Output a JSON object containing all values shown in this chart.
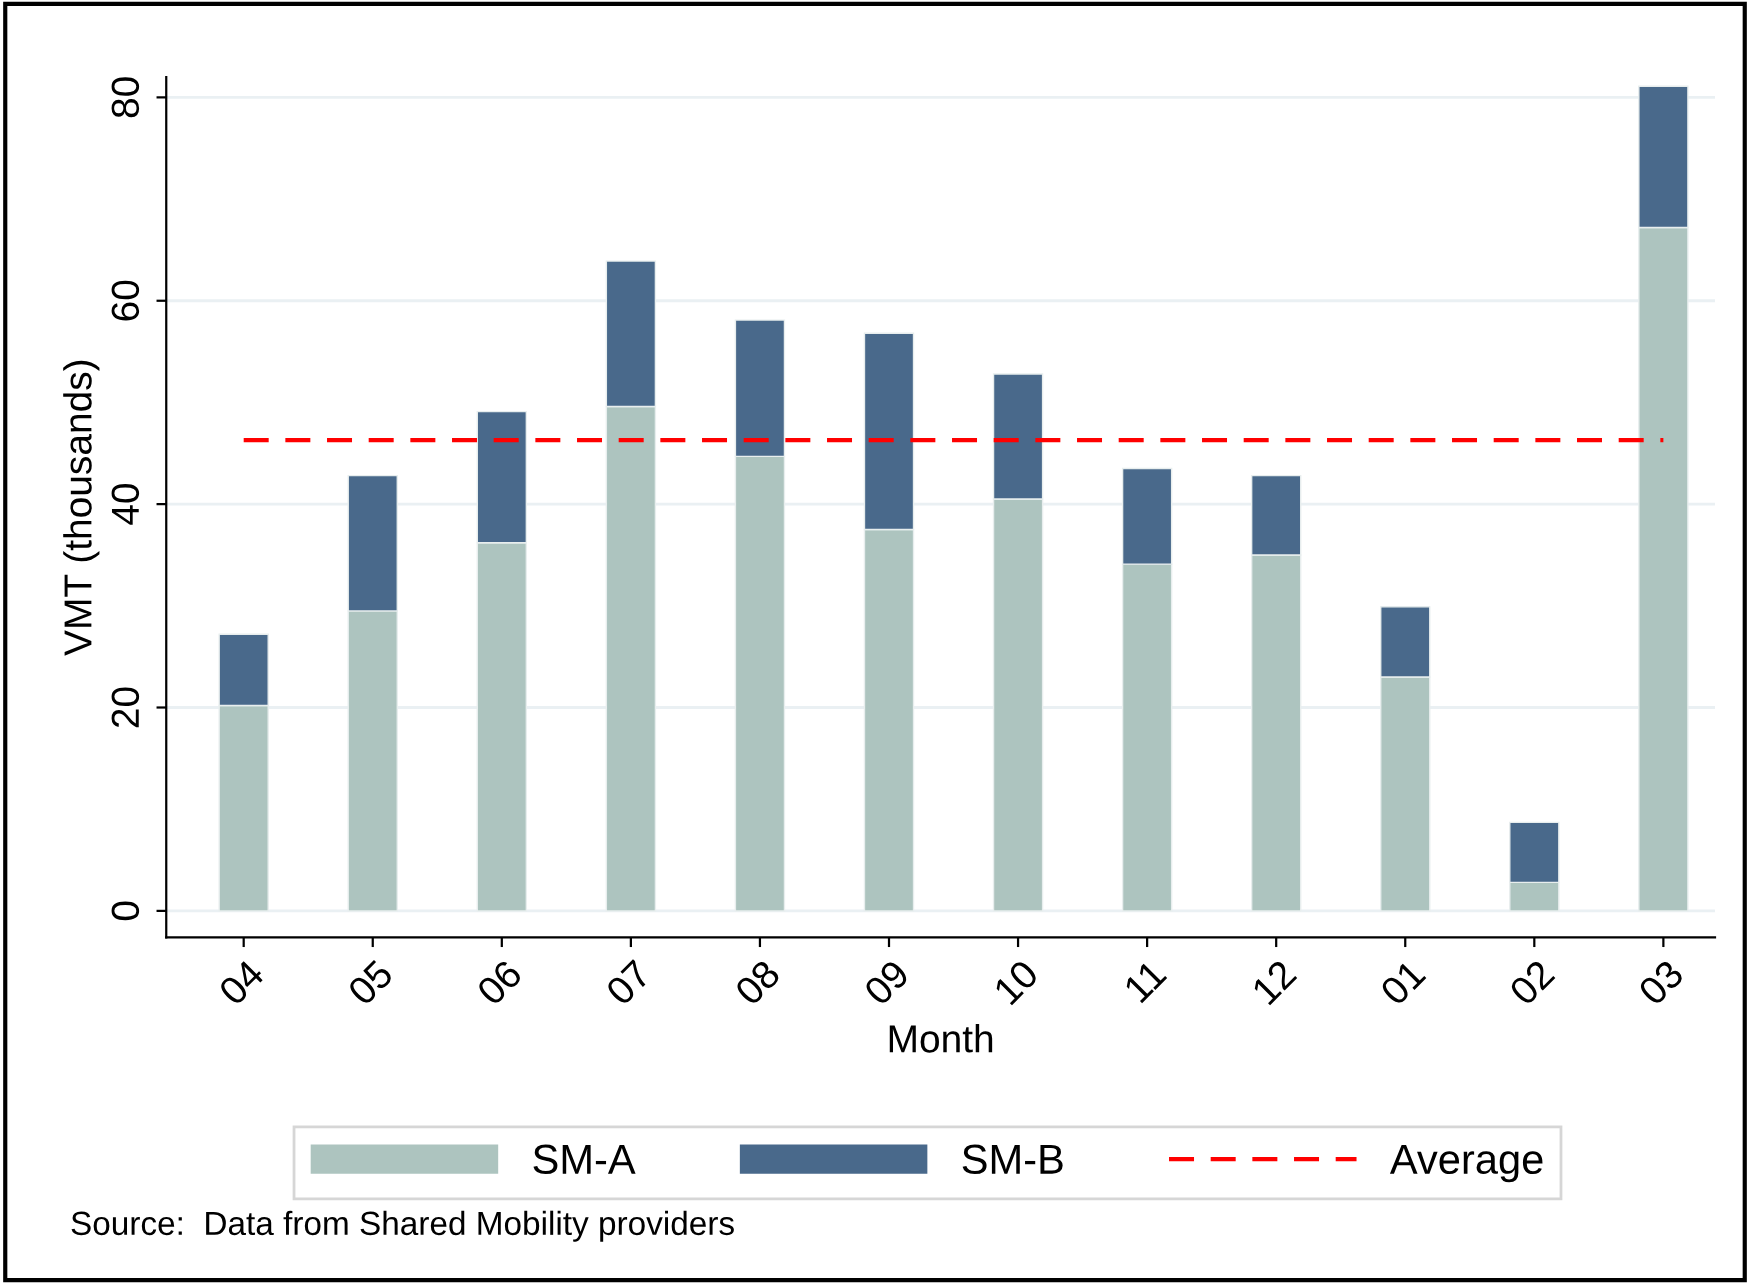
{
  "chart_data": {
    "type": "bar",
    "stacked": true,
    "xlabel": "Month",
    "ylabel": "VMT (thousands)",
    "categories": [
      "04",
      "05",
      "06",
      "07",
      "08",
      "09",
      "10",
      "11",
      "12",
      "01",
      "02",
      "03"
    ],
    "series": [
      {
        "name": "SM-A",
        "color": "#adc4bf",
        "values": [
          20.2,
          29.5,
          36.2,
          49.6,
          44.7,
          37.5,
          40.5,
          34.1,
          35.0,
          23.0,
          2.8,
          67.2
        ]
      },
      {
        "name": "SM-B",
        "color": "#49698b",
        "values": [
          7.0,
          13.3,
          12.9,
          14.3,
          13.4,
          19.3,
          12.3,
          9.4,
          7.8,
          6.9,
          5.9,
          13.9
        ]
      }
    ],
    "ref_lines": [
      {
        "axis": "y",
        "value": 46.3,
        "label": "Average",
        "color": "#ff0000",
        "line_style": "dashed"
      }
    ],
    "ylim": [
      -2.6,
      82
    ],
    "yticks": [
      0,
      20,
      40,
      60,
      80
    ],
    "grid": "y",
    "legend": "bottom",
    "annotations": [
      "Source:  Data from Shared Mobility providers"
    ]
  }
}
